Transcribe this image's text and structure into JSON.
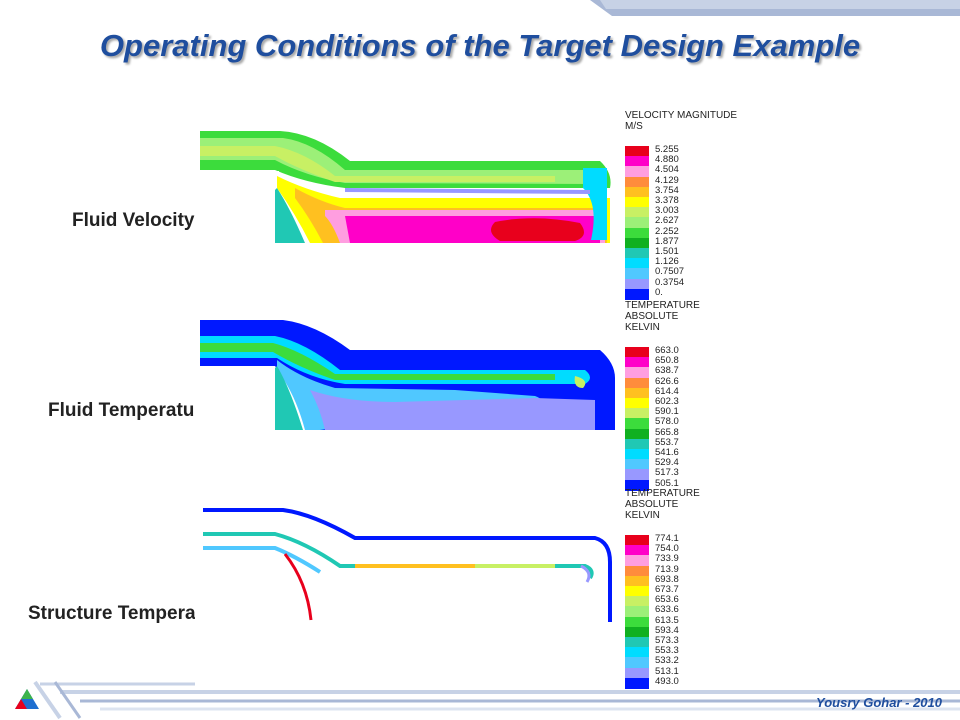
{
  "title": "Operating Conditions of the Target Design Example",
  "panels": [
    {
      "label": "Fluid Velocity",
      "legend_title": "VELOCITY MAGNITUDE\nM/S",
      "values": [
        "5.255",
        "4.880",
        "4.504",
        "4.129",
        "3.754",
        "3.378",
        "3.003",
        "2.627",
        "2.252",
        "1.877",
        "1.501",
        "1.126",
        "0.7507",
        "0.3754",
        "0."
      ]
    },
    {
      "label": "Fluid Temperature",
      "legend_title": "TEMPERATURE\nABSOLUTE\nKELVIN",
      "values": [
        "663.0",
        "650.8",
        "638.7",
        "626.6",
        "614.4",
        "602.3",
        "590.1",
        "578.0",
        "565.8",
        "553.7",
        "541.6",
        "529.4",
        "517.3",
        "505.1"
      ]
    },
    {
      "label": "Structure Temperature",
      "legend_title": "TEMPERATURE\nABSOLUTE\nKELVIN",
      "values": [
        "774.1",
        "754.0",
        "733.9",
        "713.9",
        "693.8",
        "673.7",
        "653.6",
        "633.6",
        "613.5",
        "593.4",
        "573.3",
        "553.3",
        "533.2",
        "513.1",
        "493.0"
      ]
    }
  ],
  "colormap": [
    "#e8001c",
    "#ff00c8",
    "#ff9ee0",
    "#ff8c3c",
    "#ffc020",
    "#ffff00",
    "#c8f064",
    "#9cf078",
    "#3cdc3c",
    "#10b020",
    "#20c8b4",
    "#00dcff",
    "#50c8ff",
    "#9898ff",
    "#0018ff"
  ],
  "author": "Yousry Gohar - 2010"
}
